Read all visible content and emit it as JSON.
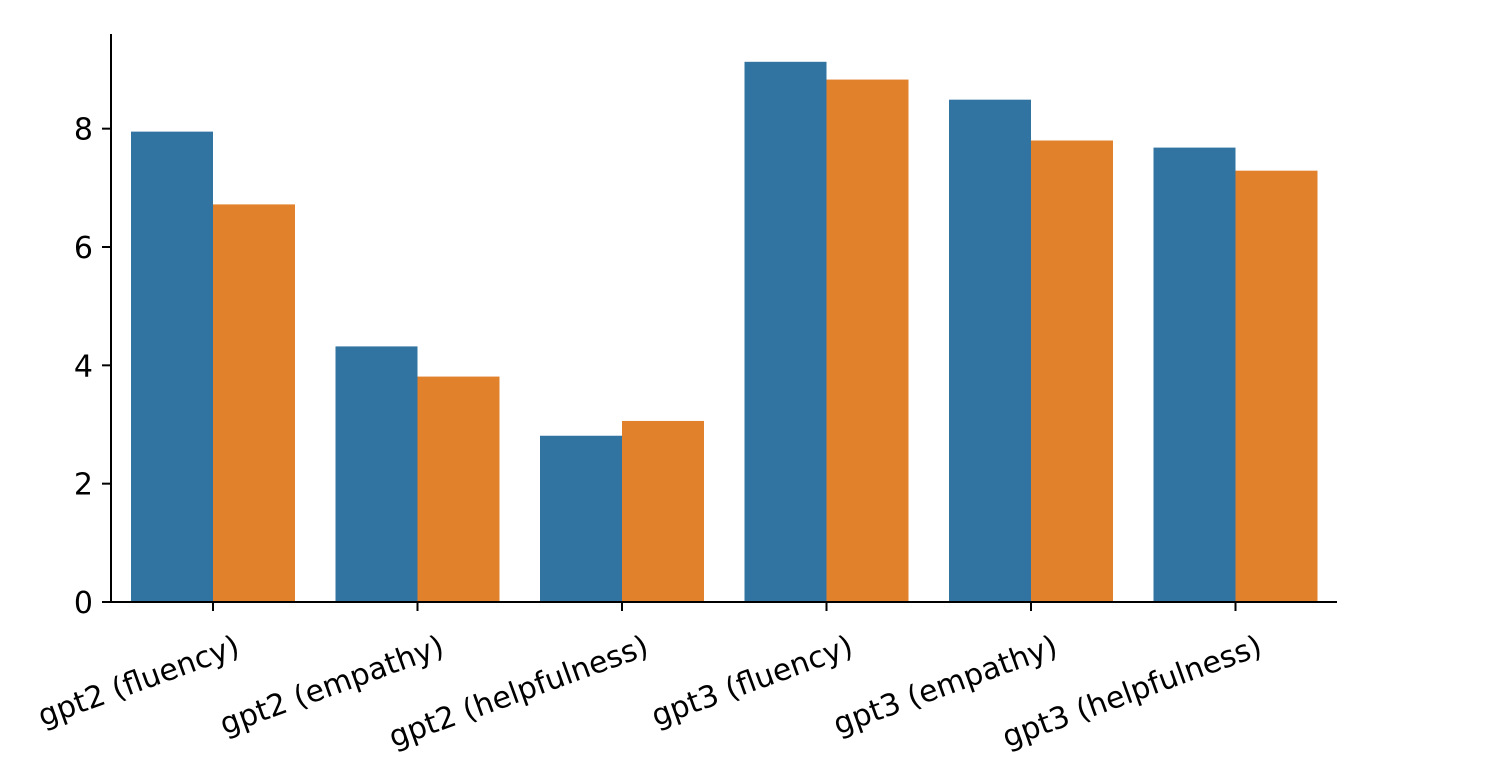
{
  "chart_data": {
    "type": "bar",
    "categories": [
      "gpt2 (fluency)",
      "gpt2 (empathy)",
      "gpt2 (helpfulness)",
      "gpt3 (fluency)",
      "gpt3 (empathy)",
      "gpt3 (helpfulness)"
    ],
    "series": [
      {
        "values": [
          7.95,
          4.32,
          2.81,
          9.13,
          8.49,
          7.68
        ],
        "color": "#3274a1"
      },
      {
        "values": [
          6.72,
          3.81,
          3.06,
          8.83,
          7.8,
          7.29
        ],
        "color": "#e1812c"
      }
    ],
    "title": "",
    "xlabel": "",
    "ylabel": "",
    "ylim": [
      0,
      9.6
    ],
    "yticks": [
      "0",
      "2",
      "4",
      "6",
      "8"
    ],
    "grid": false,
    "legend": "none"
  }
}
